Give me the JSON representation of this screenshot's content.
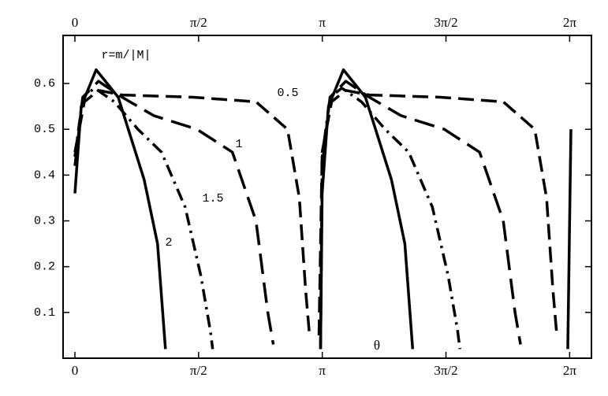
{
  "chart_data": {
    "type": "line",
    "annotation": "r=m/|M|",
    "xlabel": "θ",
    "color": "#000000",
    "xlim": [
      -0.15,
      6.56
    ],
    "ylim": [
      0,
      0.705
    ],
    "xticks": [
      {
        "value": 0,
        "label": "0"
      },
      {
        "value": 1.5708,
        "label": "π/2"
      },
      {
        "value": 3.1416,
        "label": "π"
      },
      {
        "value": 4.7124,
        "label": "3π/2"
      },
      {
        "value": 6.2832,
        "label": "2π"
      }
    ],
    "yticks": [
      0.1,
      0.2,
      0.3,
      0.4,
      0.5,
      0.6
    ],
    "series": [
      {
        "name": "0.5",
        "x": [
          0,
          0.12,
          0.3,
          0.6,
          1.5,
          2.3,
          2.7,
          2.85,
          2.93,
          2.98,
          null,
          3.1,
          3.14,
          3.26,
          3.44,
          3.74,
          4.64,
          5.44,
          5.84,
          5.99,
          6.07,
          6.12
        ],
        "values": [
          0.45,
          0.56,
          0.585,
          0.575,
          0.57,
          0.56,
          0.5,
          0.35,
          0.15,
          0.05,
          null,
          0.05,
          0.45,
          0.56,
          0.585,
          0.575,
          0.57,
          0.56,
          0.5,
          0.35,
          0.15,
          0.05
        ]
      },
      {
        "name": "1",
        "x": [
          0,
          0.1,
          0.3,
          0.6,
          1.0,
          1.55,
          2.0,
          2.3,
          2.45,
          2.52,
          null,
          3.12,
          3.14,
          3.24,
          3.44,
          3.74,
          4.14,
          4.69,
          5.14,
          5.44,
          5.59,
          5.66
        ],
        "values": [
          0.42,
          0.57,
          0.605,
          0.57,
          0.53,
          0.5,
          0.45,
          0.3,
          0.1,
          0.03,
          null,
          0.03,
          0.42,
          0.57,
          0.605,
          0.57,
          0.53,
          0.5,
          0.45,
          0.3,
          0.1,
          0.03
        ]
      },
      {
        "name": "1.5",
        "x": [
          0,
          0.1,
          0.25,
          0.5,
          0.8,
          1.1,
          1.4,
          1.6,
          1.72,
          1.75,
          null,
          3.12,
          3.14,
          3.24,
          3.39,
          3.64,
          3.94,
          4.24,
          4.54,
          4.74,
          4.86,
          4.89
        ],
        "values": [
          0.44,
          0.57,
          0.59,
          0.56,
          0.5,
          0.45,
          0.33,
          0.18,
          0.06,
          0.02,
          null,
          0.02,
          0.44,
          0.57,
          0.59,
          0.56,
          0.5,
          0.45,
          0.33,
          0.18,
          0.06,
          0.02
        ]
      },
      {
        "name": "2",
        "x": [
          0,
          0.08,
          0.27,
          0.55,
          0.88,
          1.05,
          1.15,
          null,
          3.12,
          3.14,
          3.22,
          3.41,
          3.69,
          4.02,
          4.19,
          4.29,
          null,
          6.26,
          6.3
        ],
        "values": [
          0.36,
          0.55,
          0.63,
          0.57,
          0.39,
          0.25,
          0.02,
          null,
          0.02,
          0.36,
          0.55,
          0.63,
          0.57,
          0.39,
          0.25,
          0.02,
          null,
          0.02,
          0.5
        ]
      }
    ]
  }
}
